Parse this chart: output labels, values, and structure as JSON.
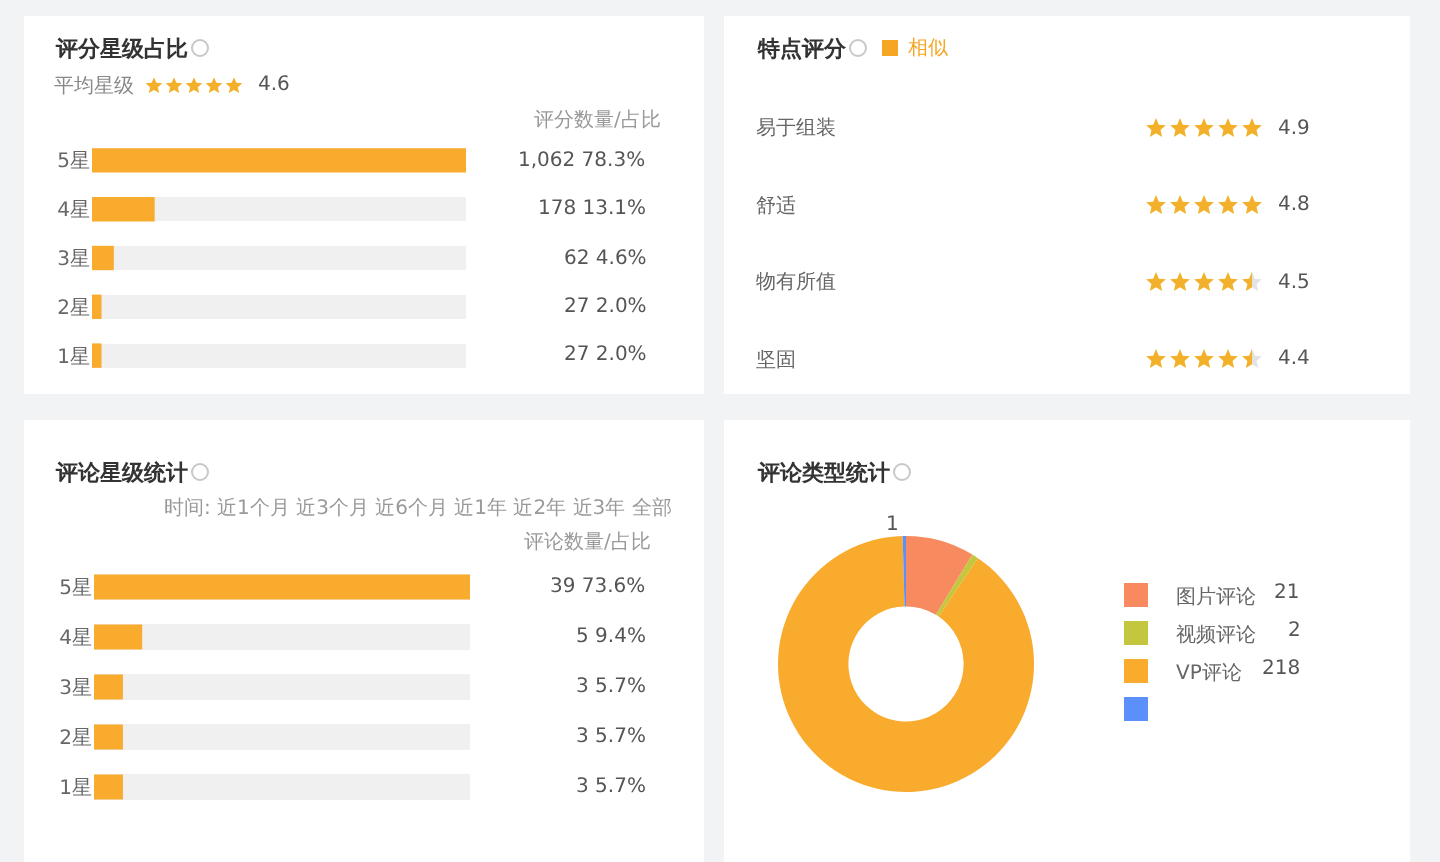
{
  "chart_data": [
    {
      "type": "bar",
      "orientation": "horizontal",
      "title": "评分星级占比",
      "subtitle": "平均星级",
      "annotations": [
        "4.6",
        "评分数量/占比"
      ],
      "categories": [
        "5星",
        "4星",
        "3星",
        "2星",
        "1星"
      ],
      "values": [
        1062,
        178,
        62,
        27,
        27
      ],
      "value_labels": [
        "1,062 78.3%",
        "178 13.1%",
        "62 4.6%",
        "27 2.0%",
        "27 2.0%"
      ],
      "color": "#f9ab2d",
      "grid": "y",
      "tick_labels": "y"
    },
    {
      "type": "other",
      "title": "特点评分",
      "annotations": [
        "相似"
      ],
      "categories": [
        "易于组装",
        "舒适",
        "物有所值",
        "坚固"
      ],
      "values": [
        4.9,
        4.8,
        4.5,
        4.4
      ],
      "data_labels": true
    },
    {
      "type": "bar",
      "orientation": "horizontal",
      "title": "评论星级统计",
      "annotations": [
        "时间: 近1个月 近3个月 近6个月 近1年 近2年 近3年 全部",
        "评论数量/占比"
      ],
      "categories": [
        "5星",
        "4星",
        "3星",
        "2星",
        "1星"
      ],
      "values": [
        39,
        5,
        3,
        3,
        3
      ],
      "value_labels": [
        "39 73.6%",
        "5 9.4%",
        "3 5.7%",
        "3 5.7%",
        "3 5.7%"
      ],
      "color": "#f9ab2d",
      "grid": "y",
      "tick_labels": "y"
    },
    {
      "type": "donut",
      "title": "评论类型统计",
      "categories": [
        "图片评论",
        "视频评论",
        "VP评论",
        null
      ],
      "values": [
        21,
        2,
        218,
        1
      ],
      "colors": [
        "#f78a5e",
        "#c3c73f",
        "#f9ab2d",
        "#5b8ff9"
      ],
      "legend": "right",
      "data_labels": true
    }
  ]
}
